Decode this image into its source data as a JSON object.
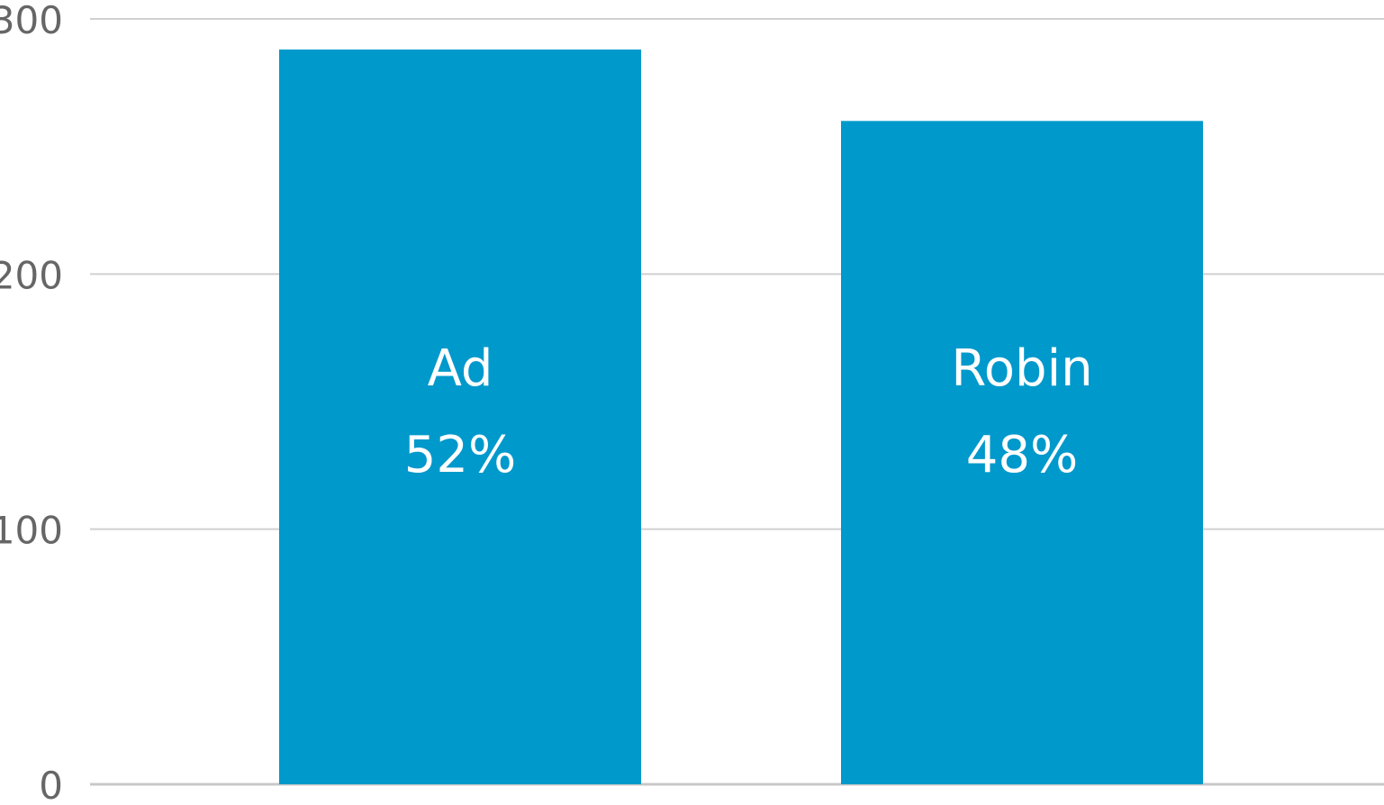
{
  "chart_data": {
    "type": "bar",
    "title": "",
    "xlabel": "",
    "ylabel": "",
    "categories": [
      "Ad",
      "Robin"
    ],
    "values": [
      288,
      260
    ],
    "percent_labels": [
      "52%",
      "48%"
    ],
    "ylim": [
      0,
      300
    ],
    "yticks": [
      {
        "value": 0,
        "label": "0"
      },
      {
        "value": 100,
        "label": "100"
      },
      {
        "value": 200,
        "label": "200"
      },
      {
        "value": 300,
        "label": "300"
      }
    ],
    "grid": true,
    "legend": "none",
    "bar_color": "#0099cc"
  }
}
